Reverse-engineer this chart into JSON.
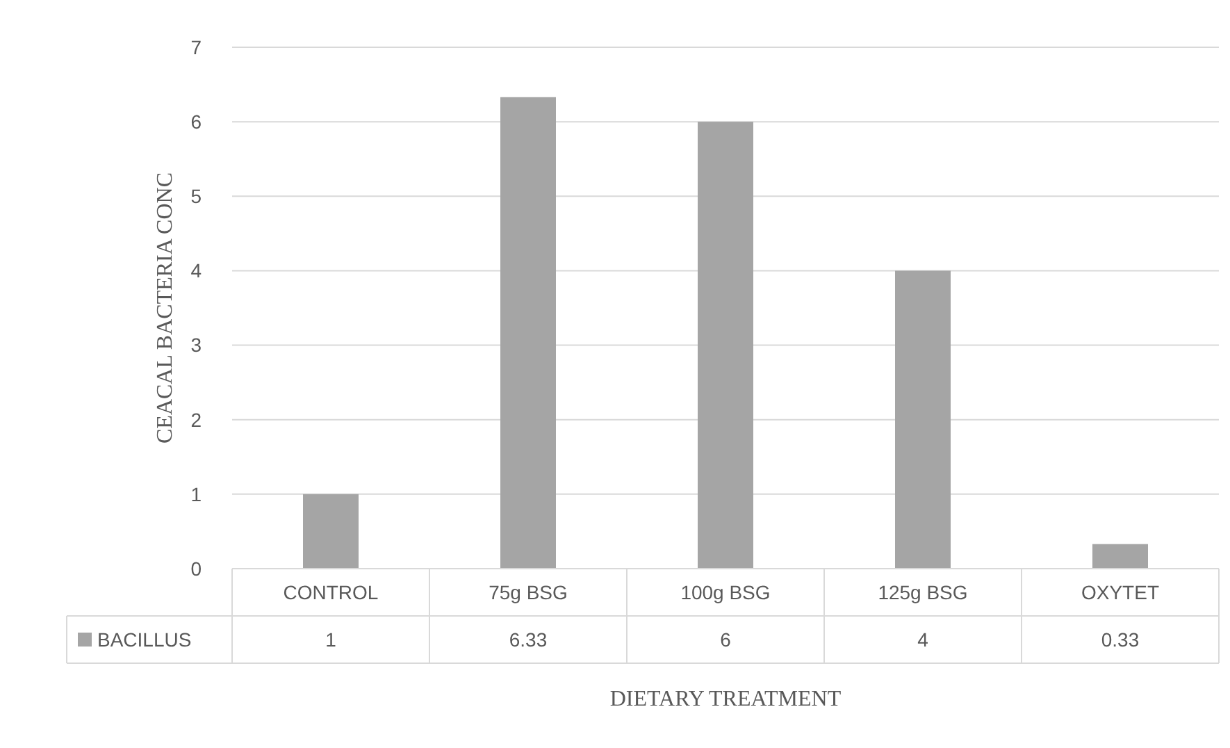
{
  "chart_data": {
    "type": "bar",
    "xlabel": "DIETARY  TREATMENT",
    "ylabel": "CEACAL  BACTERIA  CONC",
    "categories": [
      "CONTROL",
      "75g BSG",
      "100g BSG",
      "125g BSG",
      "OXYTET"
    ],
    "series": [
      {
        "name": "BACILLUS",
        "color": "#a5a5a5",
        "values": [
          1,
          6.33,
          6,
          4,
          0.33
        ]
      }
    ],
    "ylim": [
      0,
      7
    ],
    "yticks": [
      0,
      1,
      2,
      3,
      4,
      5,
      6,
      7
    ],
    "grid": "y",
    "data_labels": true,
    "legend": "bottom"
  }
}
